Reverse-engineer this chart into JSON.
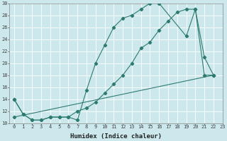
{
  "bg_color": "#cce8ed",
  "grid_color": "#ffffff",
  "line_color": "#2d7b6e",
  "line1_x": [
    0,
    1,
    2,
    3,
    4,
    5,
    6,
    7,
    8,
    9,
    10,
    11,
    12,
    13,
    14,
    15,
    16,
    19,
    20,
    21,
    22
  ],
  "line1_y": [
    14,
    11.5,
    10.5,
    10.5,
    11,
    11,
    11,
    10.5,
    15.5,
    20,
    23,
    26,
    27.5,
    28,
    29,
    30,
    30,
    24.5,
    29,
    21,
    18
  ],
  "line2_x": [
    0,
    1,
    2,
    3,
    4,
    5,
    6,
    7,
    8,
    9,
    10,
    11,
    12,
    13,
    14,
    15,
    16,
    17,
    18,
    19,
    20,
    21,
    22
  ],
  "line2_y": [
    14,
    11.5,
    10.5,
    10.5,
    11,
    11,
    11,
    12,
    12.5,
    13.5,
    15,
    16.5,
    18,
    20,
    22.5,
    23.5,
    25.5,
    27,
    28.5,
    29,
    29,
    18,
    18
  ],
  "line3_x": [
    0,
    22
  ],
  "line3_y": [
    11,
    18
  ],
  "xlim": [
    -0.5,
    23
  ],
  "ylim": [
    10,
    30
  ],
  "yticks": [
    10,
    12,
    14,
    16,
    18,
    20,
    22,
    24,
    26,
    28,
    30
  ],
  "xticks": [
    0,
    1,
    2,
    3,
    4,
    5,
    6,
    7,
    8,
    9,
    10,
    11,
    12,
    13,
    14,
    15,
    16,
    17,
    18,
    19,
    20,
    21,
    22,
    23
  ],
  "xlabel": "Humidex (Indice chaleur)",
  "tick_fontsize": 5.0,
  "xlabel_fontsize": 6.5
}
